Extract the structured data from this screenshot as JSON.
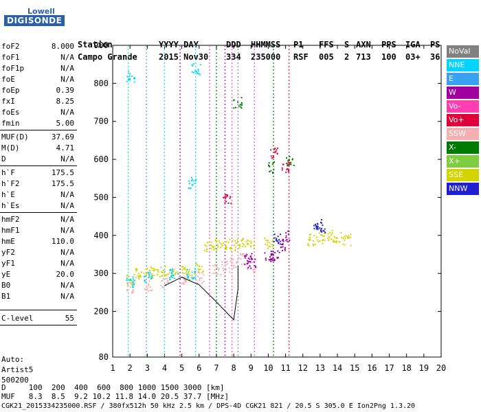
{
  "logo": {
    "line1": "Lowell",
    "line2": "DIGISONDE"
  },
  "header": {
    "station_label": "Station",
    "station": "Campo Grande",
    "date_label": "YYYY DAY",
    "date": "2015 Nov30",
    "doy_label": "DDD",
    "doy": "334",
    "time_label": "HHMMSS",
    "time": "235000",
    "p1_label": "P1",
    "p1": "RSF",
    "ffs_label": "FFS",
    "ffs": "005",
    "s_label": "S",
    "s": "2",
    "axn_label": "AXN",
    "axn": "713",
    "pps_label": "PPS",
    "pps": "100",
    "iga_label": "IGA",
    "iga": "03+",
    "ps_label": "PS",
    "ps": "36"
  },
  "params": [
    {
      "k": "foF2",
      "v": "8.000"
    },
    {
      "k": "foF1",
      "v": "N/A"
    },
    {
      "k": "foF1p",
      "v": "N/A"
    },
    {
      "k": "foE",
      "v": "N/A"
    },
    {
      "k": "foEp",
      "v": "0.39"
    },
    {
      "k": "fxI",
      "v": "8.25"
    },
    {
      "k": "foEs",
      "v": "N/A"
    },
    {
      "k": "fmin",
      "v": "5.00"
    },
    {
      "k": "MUF(D)",
      "v": "37.69"
    },
    {
      "k": "M(D)",
      "v": "4.71"
    },
    {
      "k": "D",
      "v": "N/A"
    },
    {
      "k": "h`F",
      "v": "175.5"
    },
    {
      "k": "h`F2",
      "v": "175.5"
    },
    {
      "k": "h`E",
      "v": "N/A"
    },
    {
      "k": "h`Es",
      "v": "N/A"
    },
    {
      "k": "hmF2",
      "v": "N/A"
    },
    {
      "k": "hmF1",
      "v": "N/A"
    },
    {
      "k": "hmE",
      "v": "110.0"
    },
    {
      "k": "yF2",
      "v": "N/A"
    },
    {
      "k": "yF1",
      "v": "N/A"
    },
    {
      "k": "yE",
      "v": "20.0"
    },
    {
      "k": "B0",
      "v": "N/A"
    },
    {
      "k": "B1",
      "v": "N/A"
    },
    {
      "k": "C-level",
      "v": "55"
    }
  ],
  "auto": {
    "l1": "Auto:",
    "l2": "Artist5",
    "l3": "500200"
  },
  "footer": {
    "d_row": "D     100  200  400  600  800 1000 1500 3000 [km]",
    "muf_row": "MUF   8.3  8.5  9.2 10.2 11.8 14.0 20.5 37.7 [MHz]",
    "info_row": "CGK21_2015334235000.RSF / 380fx512h 50 kHz 2.5 km / DPS-4D CGK21 821 / 20.5 S 305.0 E Ion2Png 1.3.20"
  },
  "legend": [
    {
      "label": "NoVal",
      "color": "#808080"
    },
    {
      "label": "NNE",
      "color": "#00d4ff"
    },
    {
      "label": "E",
      "color": "#3aa0f0"
    },
    {
      "label": "W",
      "color": "#a000a0"
    },
    {
      "label": "Vo-",
      "color": "#ff3fb0"
    },
    {
      "label": "Vo+",
      "color": "#e0003a"
    },
    {
      "label": "SSW",
      "color": "#f4b0b0"
    },
    {
      "label": "X-",
      "color": "#007a00"
    },
    {
      "label": "X+",
      "color": "#80cc40"
    },
    {
      "label": "SSE",
      "color": "#d4d400"
    },
    {
      "label": "NNW",
      "color": "#2020d0"
    }
  ],
  "chart_data": {
    "type": "scatter",
    "xlim": [
      1,
      20
    ],
    "ylim": [
      80,
      900
    ],
    "x_ticks": [
      "1",
      "2",
      "3",
      "4",
      "5",
      "6",
      "7",
      "8",
      "9",
      "10",
      "11",
      "12",
      "13",
      "14",
      "15",
      "16",
      "17",
      "18",
      "19",
      "20"
    ],
    "y_ticks": [
      "80",
      "200",
      "300",
      "400",
      "500",
      "600",
      "700",
      "800",
      "900"
    ],
    "clusters": [
      {
        "name": "SSE",
        "color": "#d4d400",
        "points": [
          [
            2.0,
            285
          ],
          [
            2.5,
            300
          ],
          [
            3.0,
            305
          ],
          [
            3.5,
            300
          ],
          [
            4.0,
            310
          ],
          [
            4.5,
            300
          ],
          [
            5.0,
            305
          ],
          [
            5.5,
            300
          ],
          [
            6.0,
            320
          ],
          [
            6.5,
            370
          ],
          [
            7.0,
            375
          ],
          [
            7.5,
            380
          ],
          [
            8.0,
            375
          ],
          [
            8.5,
            380
          ],
          [
            9.0,
            380
          ],
          [
            10.0,
            380
          ],
          [
            12.5,
            390
          ],
          [
            13.0,
            395
          ],
          [
            13.5,
            400
          ],
          [
            14.0,
            395
          ],
          [
            14.5,
            390
          ]
        ]
      },
      {
        "name": "SSW",
        "color": "#f4b0b0",
        "points": [
          [
            2.0,
            265
          ],
          [
            3.0,
            270
          ],
          [
            4.0,
            275
          ],
          [
            5.0,
            285
          ],
          [
            6.0,
            290
          ],
          [
            7.0,
            310
          ],
          [
            7.5,
            320
          ],
          [
            8.0,
            330
          ],
          [
            8.5,
            340
          ],
          [
            9.0,
            320
          ]
        ]
      },
      {
        "name": "W",
        "color": "#a000a0",
        "points": [
          [
            8.8,
            340
          ],
          [
            9.0,
            330
          ],
          [
            10.0,
            345
          ],
          [
            10.3,
            350
          ],
          [
            10.7,
            370
          ],
          [
            11.0,
            400
          ]
        ]
      },
      {
        "name": "NNE",
        "color": "#00d4ff",
        "points": [
          [
            2.0,
            280
          ],
          [
            3.0,
            290
          ],
          [
            4.5,
            300
          ],
          [
            5.5,
            300
          ],
          [
            5.8,
            840
          ],
          [
            5.6,
            540
          ],
          [
            2.0,
            820
          ]
        ]
      },
      {
        "name": "NNW",
        "color": "#2020d0",
        "points": [
          [
            10.5,
            390
          ],
          [
            12.8,
            430
          ],
          [
            13.0,
            420
          ]
        ]
      },
      {
        "name": "X-",
        "color": "#007a00",
        "points": [
          [
            10.2,
            580
          ],
          [
            11.2,
            600
          ],
          [
            8.2,
            750
          ]
        ]
      },
      {
        "name": "Vo+",
        "color": "#e0003a",
        "points": [
          [
            10.3,
            620
          ],
          [
            11.0,
            580
          ],
          [
            7.6,
            500
          ]
        ]
      }
    ],
    "trace": [
      [
        4.0,
        268
      ],
      [
        5.0,
        290
      ],
      [
        6.0,
        270
      ],
      [
        7.0,
        225
      ],
      [
        8.0,
        178
      ],
      [
        8.25,
        260
      ],
      [
        8.25,
        320
      ]
    ]
  }
}
